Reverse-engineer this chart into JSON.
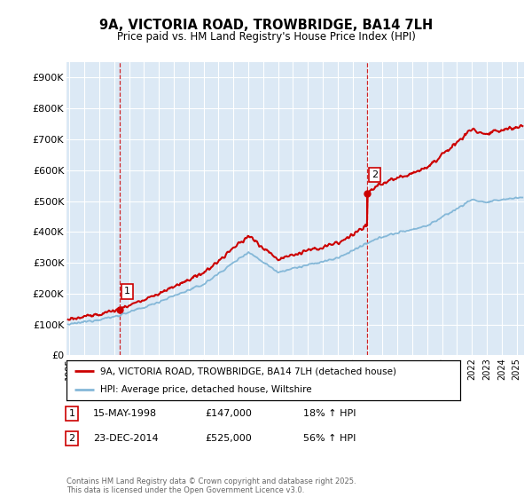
{
  "title": "9A, VICTORIA ROAD, TROWBRIDGE, BA14 7LH",
  "subtitle": "Price paid vs. HM Land Registry's House Price Index (HPI)",
  "ylabel_ticks": [
    "£0",
    "£100K",
    "£200K",
    "£300K",
    "£400K",
    "£500K",
    "£600K",
    "£700K",
    "£800K",
    "£900K"
  ],
  "ytick_values": [
    0,
    100000,
    200000,
    300000,
    400000,
    500000,
    600000,
    700000,
    800000,
    900000
  ],
  "ylim": [
    0,
    950000
  ],
  "xlim_start": 1994.8,
  "xlim_end": 2025.5,
  "xtick_years": [
    1995,
    1996,
    1997,
    1998,
    1999,
    2000,
    2001,
    2002,
    2003,
    2004,
    2005,
    2006,
    2007,
    2008,
    2009,
    2010,
    2011,
    2012,
    2013,
    2014,
    2015,
    2016,
    2017,
    2018,
    2019,
    2020,
    2021,
    2022,
    2023,
    2024,
    2025
  ],
  "purchase1_x": 1998.37,
  "purchase1_y": 147000,
  "purchase1_label": "1",
  "purchase1_date": "15-MAY-1998",
  "purchase1_price": "£147,000",
  "purchase1_hpi": "18% ↑ HPI",
  "purchase2_x": 2014.98,
  "purchase2_y": 525000,
  "purchase2_label": "2",
  "purchase2_date": "23-DEC-2014",
  "purchase2_price": "£525,000",
  "purchase2_hpi": "56% ↑ HPI",
  "line1_color": "#cc0000",
  "line2_color": "#85b8d8",
  "vline_color": "#cc0000",
  "bg_color": "#dce9f5",
  "legend1": "9A, VICTORIA ROAD, TROWBRIDGE, BA14 7LH (detached house)",
  "legend2": "HPI: Average price, detached house, Wiltshire",
  "footer": "Contains HM Land Registry data © Crown copyright and database right 2025.\nThis data is licensed under the Open Government Licence v3.0.",
  "marker_box_color": "#cc0000",
  "fig_width": 6.0,
  "fig_height": 5.6,
  "dpi": 100
}
